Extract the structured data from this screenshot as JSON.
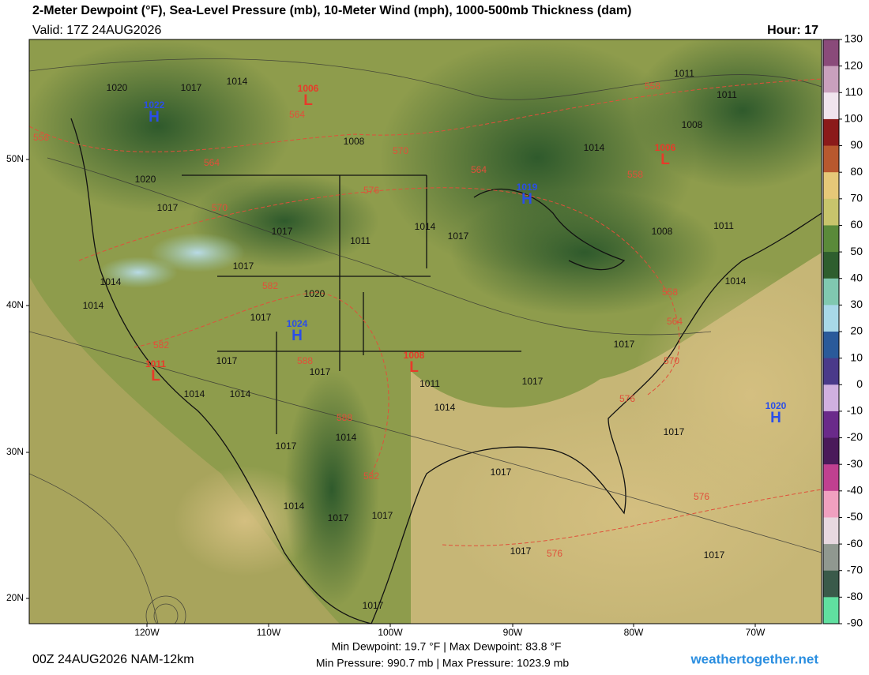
{
  "header": {
    "title": "2-Meter Dewpoint (°F), Sea-Level Pressure (mb), 10-Meter Wind (mph), 1000-500mb Thickness (dam)",
    "valid": "Valid: 17Z 24AUG2026",
    "hour": "Hour: 17"
  },
  "colorbar": {
    "ticks": [
      130,
      120,
      110,
      100,
      90,
      80,
      70,
      60,
      50,
      40,
      30,
      20,
      10,
      0,
      -10,
      -20,
      -30,
      -40,
      -50,
      -60,
      -70,
      -80,
      -90
    ],
    "colors": [
      "#8a4a7a",
      "#c9a0bd",
      "#f0e4ee",
      "#8b1a1a",
      "#b8582e",
      "#e6c878",
      "#c8c46c",
      "#5a8a3a",
      "#2e5e2e",
      "#80c8b0",
      "#a8d8e8",
      "#2a5a9a",
      "#4a3a8a",
      "#d0b0e0",
      "#6a2a8a",
      "#4a1a5a",
      "#c04090",
      "#f0a0c0",
      "#e8d8e0",
      "#909890",
      "#3a5a4a",
      "#60e0a0"
    ]
  },
  "latitudes": [
    "50N",
    "40N",
    "30N",
    "20N"
  ],
  "longitudes": [
    "120W",
    "110W",
    "100W",
    "90W",
    "80W",
    "70W"
  ],
  "centers": [
    {
      "kind": "H",
      "value": 1022
    },
    {
      "kind": "L",
      "value": 1006
    },
    {
      "kind": "L",
      "value": 1006
    },
    {
      "kind": "H",
      "value": 1019
    },
    {
      "kind": "H",
      "value": 1024
    },
    {
      "kind": "L",
      "value": 1011
    },
    {
      "kind": "L",
      "value": 1008
    },
    {
      "kind": "H",
      "value": 1020
    }
  ],
  "isobar_labels": [
    1020,
    1014,
    1017,
    1020,
    1017,
    1008,
    1017,
    1011,
    1014,
    1017,
    1017,
    1014,
    1014,
    1020,
    1017,
    1017,
    1017,
    1014,
    1014,
    1011,
    1014,
    1014,
    1017,
    1014,
    1017,
    1017,
    1017,
    1017,
    1017,
    1017,
    1017,
    1017,
    1014,
    1008,
    1011,
    1008,
    1011,
    1011,
    1014,
    1017
  ],
  "thickness_labels": [
    558,
    564,
    564,
    570,
    570,
    576,
    564,
    558,
    558,
    558,
    564,
    570,
    576,
    576,
    576,
    582,
    582,
    588,
    588,
    582
  ],
  "footer": {
    "run": "00Z 24AUG2026 NAM-12km",
    "dewpoint": "Min Dewpoint:  19.7 °F | Max Dewpoint:  83.8 °F",
    "pressure": "Min Pressure: 990.7 mb | Max Pressure: 1023.9 mb",
    "site": "weathertogether.net"
  }
}
